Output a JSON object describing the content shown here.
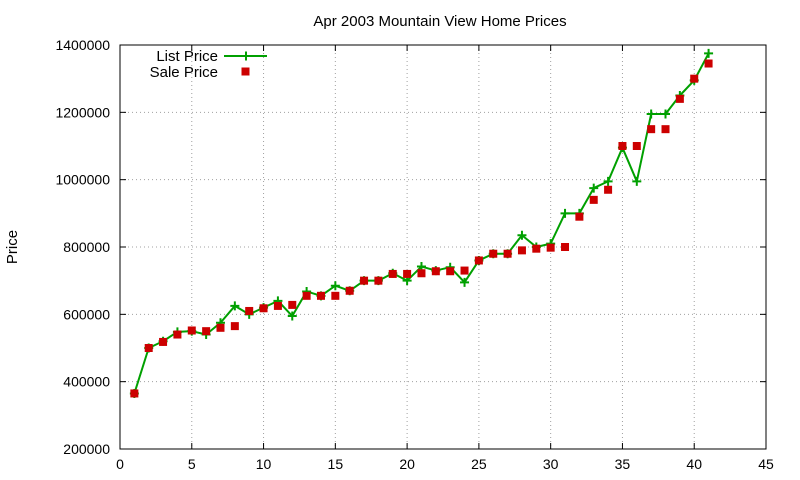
{
  "chart_data": {
    "type": "line",
    "title": "Apr 2003 Mountain View Home Prices",
    "xlabel": "",
    "ylabel": "Price",
    "xlim": [
      0,
      45
    ],
    "ylim": [
      200000,
      1400000
    ],
    "xticks": [
      0,
      5,
      10,
      15,
      20,
      25,
      30,
      35,
      40,
      45
    ],
    "yticks": [
      200000,
      400000,
      600000,
      800000,
      1000000,
      1200000,
      1400000
    ],
    "grid": true,
    "legend_position": "top-left",
    "x": [
      1,
      2,
      3,
      4,
      5,
      6,
      7,
      8,
      9,
      10,
      11,
      12,
      13,
      14,
      15,
      16,
      17,
      18,
      19,
      20,
      21,
      22,
      23,
      24,
      25,
      26,
      27,
      28,
      29,
      30,
      31,
      32,
      33,
      34,
      35,
      36,
      37,
      38,
      39,
      40,
      41
    ],
    "series": [
      {
        "name": "List Price",
        "style": "line-with-plus-markers",
        "color": "#00a000",
        "values": [
          365000,
          500000,
          520000,
          548000,
          550000,
          540000,
          575000,
          625000,
          600000,
          620000,
          640000,
          595000,
          668000,
          655000,
          685000,
          670000,
          700000,
          700000,
          722000,
          700000,
          742000,
          730000,
          740000,
          695000,
          760000,
          780000,
          780000,
          835000,
          800000,
          810000,
          900000,
          900000,
          975000,
          995000,
          1095000,
          995000,
          1195000,
          1195000,
          1250000,
          1295000,
          1375000
        ]
      },
      {
        "name": "Sale Price",
        "style": "square-markers",
        "color": "#cc0000",
        "values": [
          365000,
          500000,
          518000,
          540000,
          552000,
          550000,
          560000,
          565000,
          610000,
          618000,
          625000,
          628000,
          655000,
          655000,
          655000,
          670000,
          700000,
          700000,
          720000,
          720000,
          722000,
          728000,
          728000,
          730000,
          760000,
          780000,
          780000,
          790000,
          795000,
          798000,
          800000,
          890000,
          940000,
          970000,
          1100000,
          1100000,
          1150000,
          1150000,
          1240000,
          1300000,
          1345000
        ]
      }
    ]
  }
}
